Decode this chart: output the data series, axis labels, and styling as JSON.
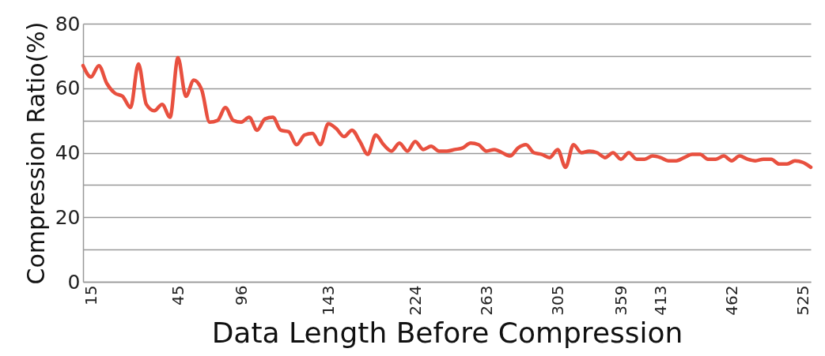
{
  "chart_data": {
    "type": "line",
    "xlabel": "Data Length Before Compression",
    "ylabel": "Compression Ratio(%)",
    "categories": [
      null,
      "15",
      null,
      null,
      null,
      null,
      null,
      null,
      null,
      null,
      null,
      null,
      "45",
      null,
      null,
      null,
      null,
      null,
      null,
      null,
      "96",
      null,
      null,
      null,
      null,
      null,
      null,
      null,
      null,
      null,
      null,
      "143",
      null,
      null,
      null,
      null,
      null,
      null,
      null,
      null,
      null,
      null,
      "224",
      null,
      null,
      null,
      null,
      null,
      null,
      null,
      null,
      "263",
      null,
      null,
      null,
      null,
      null,
      null,
      null,
      null,
      "305",
      null,
      null,
      null,
      null,
      null,
      null,
      null,
      "359",
      null,
      null,
      null,
      null,
      "413",
      null,
      null,
      null,
      null,
      null,
      null,
      null,
      null,
      "462",
      null,
      null,
      null,
      null,
      null,
      null,
      null,
      null,
      "525",
      null
    ],
    "series": [
      {
        "color": "#e8503f",
        "values": [
          67,
          63.5,
          67,
          61.5,
          58.5,
          57.5,
          54,
          67.5,
          55,
          53,
          55,
          51,
          69.5,
          57.5,
          62.5,
          59.5,
          49.5,
          50,
          54,
          50,
          49.5,
          51,
          47,
          50.5,
          51,
          47,
          46.5,
          42.5,
          45.5,
          46,
          42.5,
          49,
          47.5,
          45,
          47,
          43.5,
          39.5,
          45.5,
          42.5,
          40.5,
          43,
          40.5,
          43.5,
          41,
          42,
          40.5,
          40.5,
          41,
          41.5,
          43,
          42.5,
          40.5,
          41,
          40,
          39,
          41.5,
          42.5,
          40,
          39.5,
          38.5,
          41,
          35.5,
          42.5,
          40,
          40.5,
          40,
          38.5,
          40,
          38,
          40,
          38,
          38,
          39,
          38.5,
          37.5,
          37.5,
          38.5,
          39.5,
          39.5,
          38,
          38,
          39,
          37.5,
          39,
          38,
          37.5,
          38,
          38,
          36.5,
          36.5,
          37.5,
          37,
          35.5
        ]
      }
    ],
    "ylim": [
      0,
      80
    ],
    "yticks": [
      0,
      {
        "value": 10,
        "label": null
      },
      20,
      {
        "value": 30,
        "label": null
      },
      40,
      {
        "value": 50,
        "label": null
      },
      60,
      {
        "value": 70,
        "label": null
      },
      80
    ],
    "grid": "y",
    "marker": "none",
    "line_style": "solid"
  }
}
